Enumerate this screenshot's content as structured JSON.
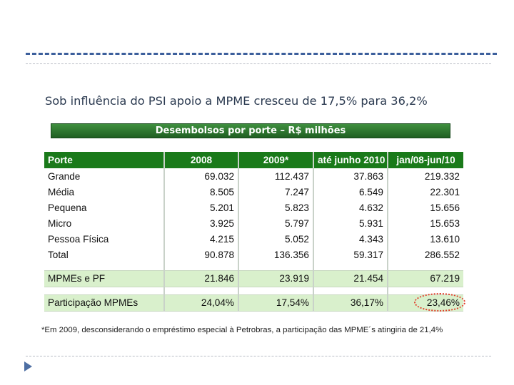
{
  "slide": {
    "headline": "Sob influência do PSI apoio a MPME cresceu de 17,5% para 36,2%",
    "banner": "Desembolsos por porte – R$ milhões",
    "footnote": "*Em 2009, desconsiderando o empréstimo especial à Petrobras, a participação das MPME´s atingiria de 21,4%"
  },
  "table": {
    "headers": [
      "Porte",
      "2008",
      "2009*",
      "até junho 2010",
      "jan/08-jun/10"
    ],
    "rows": [
      [
        "Grande",
        "69.032",
        "112.437",
        "37.863",
        "219.332"
      ],
      [
        "Média",
        "8.505",
        "7.247",
        "6.549",
        "22.301"
      ],
      [
        "Pequena",
        "5.201",
        "5.823",
        "4.632",
        "15.656"
      ],
      [
        "Micro",
        "3.925",
        "5.797",
        "5.931",
        "15.653"
      ],
      [
        "Pessoa Física",
        "4.215",
        "5.052",
        "4.343",
        "13.610"
      ],
      [
        "Total",
        "90.878",
        "136.356",
        "59.317",
        "286.552"
      ]
    ],
    "mpme_pf": [
      "MPMEs e PF",
      "21.846",
      "23.919",
      "21.454",
      "67.219"
    ],
    "participacao": [
      "Participação MPMEs",
      "24,04%",
      "17,54%",
      "36,17%",
      "23,46%"
    ]
  },
  "colors": {
    "header_green": "#1a7a1a",
    "band_green": "#d9f0cc",
    "accent_blue": "#3c5f9c",
    "highlight_red": "#e0402c"
  }
}
